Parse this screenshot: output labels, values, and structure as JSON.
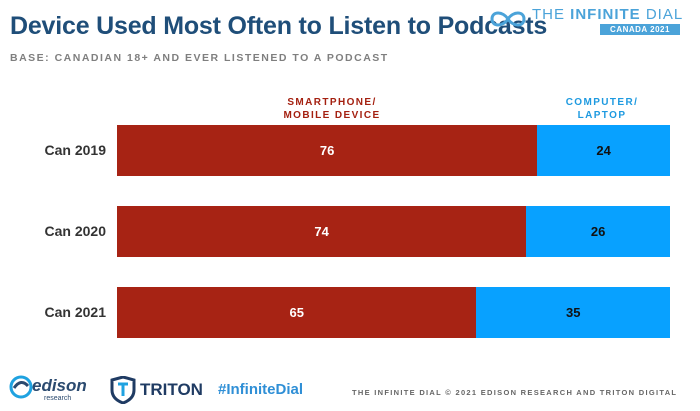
{
  "title": "Device Used Most Often to Listen to Podcasts",
  "subtitle": "BASE: CANADIAN 18+ AND EVER LISTENED TO A PODCAST",
  "brand": {
    "title_light": "THE ",
    "title_bold": "INFINITE",
    "title_rest": " DIAL",
    "edition": "CANADA 2021",
    "color": "#4ba3d9"
  },
  "chart_data": {
    "type": "bar",
    "orientation": "horizontal",
    "stacked": true,
    "categories": [
      "Can 2019",
      "Can 2020",
      "Can 2021"
    ],
    "series": [
      {
        "name": "SMARTPHONE/ MOBILE DEVICE",
        "legend_lines": [
          "SMARTPHONE/",
          "MOBILE DEVICE"
        ],
        "values": [
          76,
          74,
          65
        ],
        "color": "#a72314"
      },
      {
        "name": "COMPUTER/ LAPTOP",
        "legend_lines": [
          "COMPUTER/",
          "LAPTOP"
        ],
        "values": [
          24,
          26,
          35
        ],
        "color": "#08a1ff"
      }
    ],
    "xlim": [
      0,
      100
    ],
    "grid": false,
    "legend_placement": "top"
  },
  "footer": {
    "edison_name": "edison",
    "edison_sub": "research",
    "triton_name": "TRITON",
    "hashtag": "#InfiniteDial",
    "copyright": "THE INFINITE DIAL   © 2021 EDISON RESEARCH AND TRITON DIGITAL"
  }
}
